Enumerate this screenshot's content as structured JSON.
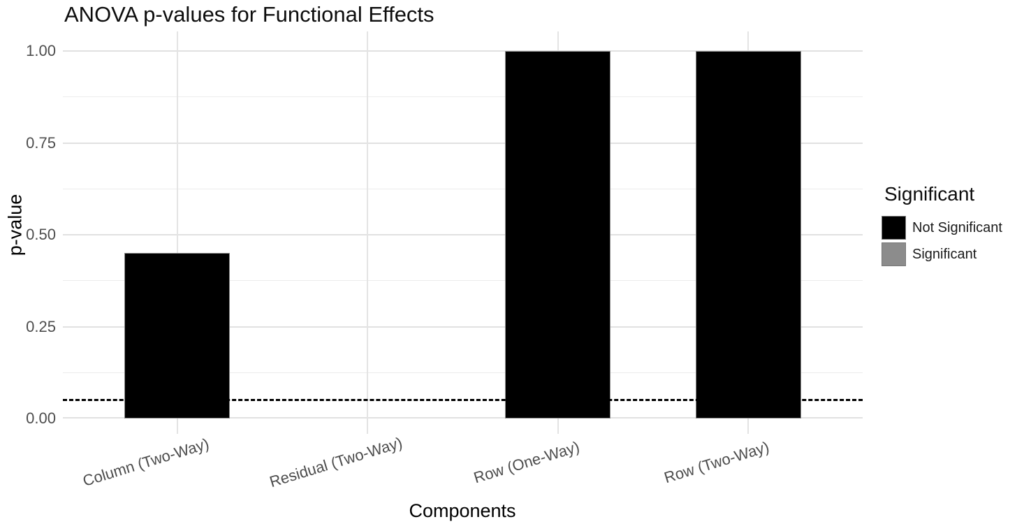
{
  "chart_data": {
    "type": "bar",
    "title": "ANOVA p-values for Functional Effects",
    "xlabel": "Components",
    "ylabel": "p-value",
    "categories": [
      "Column (Two-Way)",
      "Residual (Two-Way)",
      "Row (One-Way)",
      "Row (Two-Way)"
    ],
    "values": [
      0.45,
      0,
      1.0,
      1.0
    ],
    "threshold_line": {
      "value": 0.05,
      "style": "dashed",
      "color": "#000000"
    },
    "ylim": [
      0,
      1
    ],
    "yticks": [
      {
        "value": 0.0,
        "label": "0.00"
      },
      {
        "value": 0.25,
        "label": "0.25"
      },
      {
        "value": 0.5,
        "label": "0.50"
      },
      {
        "value": 0.75,
        "label": "0.75"
      },
      {
        "value": 1.0,
        "label": "1.00"
      }
    ],
    "minor_gridlines": [
      0.125,
      0.375,
      0.625,
      0.875
    ],
    "grid": true,
    "legend": {
      "title": "Significant",
      "position": "right",
      "entries": [
        {
          "label": "Not Significant",
          "color": "#000000"
        },
        {
          "label": "Significant",
          "color": "#8c8c8c"
        }
      ]
    },
    "colors": {
      "background": "#ffffff",
      "grid_major": "#e1e1e1",
      "grid_minor": "#ececec",
      "axis_text": "#4d4d4d",
      "bar_fill": "#000000",
      "bar_border": "#8a8a8a"
    }
  }
}
